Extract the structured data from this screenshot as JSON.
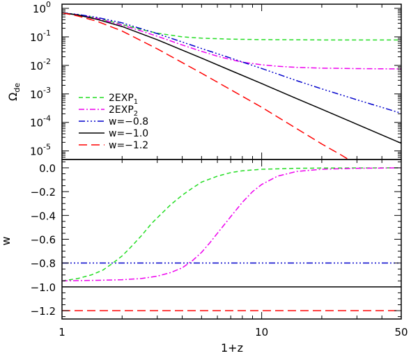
{
  "chart_data": [
    {
      "type": "line",
      "panel": "top",
      "ylabel_main": "Ω",
      "ylabel_sub": "de",
      "xscale": "log",
      "yscale": "log",
      "xlim": [
        1,
        50
      ],
      "ylim": [
        5e-06,
        1.4
      ],
      "yticks": [
        {
          "value": 1,
          "mantissa": "10",
          "exp": "0"
        },
        {
          "value": 0.1,
          "mantissa": "10",
          "exp": "-1"
        },
        {
          "value": 0.01,
          "mantissa": "10",
          "exp": "-2"
        },
        {
          "value": 0.001,
          "mantissa": "10",
          "exp": "-3"
        },
        {
          "value": 0.0001,
          "mantissa": "10",
          "exp": "-4"
        },
        {
          "value": 1e-05,
          "mantissa": "10",
          "exp": "-5"
        }
      ],
      "legend_position": "lower-left",
      "legend": [
        {
          "text": "2EXP",
          "sub": "1",
          "color": "#22dd22",
          "dash": "6,4"
        },
        {
          "text": "2EXP",
          "sub": "2",
          "color": "#ee00ee",
          "dash": "8,3,2,3"
        },
        {
          "text": "w=−0.8",
          "sub": "",
          "color": "#0000cc",
          "dash": "9,3,2,3,2,3,2,3"
        },
        {
          "text": "w=−1.0",
          "sub": "",
          "color": "#000000",
          "dash": ""
        },
        {
          "text": "w=−1.2",
          "sub": "",
          "color": "#ff0000",
          "dash": "12,6"
        }
      ],
      "series": [
        {
          "name": "2EXP1",
          "color": "#22dd22",
          "dash": "6,4",
          "x": [
            1,
            1.2,
            1.5,
            1.8,
            2,
            2.5,
            3,
            4,
            5,
            7,
            10,
            15,
            20,
            30,
            50
          ],
          "y": [
            0.7,
            0.6,
            0.45,
            0.33,
            0.27,
            0.18,
            0.135,
            0.1,
            0.09,
            0.083,
            0.08,
            0.079,
            0.078,
            0.078,
            0.078
          ]
        },
        {
          "name": "2EXP2",
          "color": "#ee00ee",
          "dash": "8,3,2,3",
          "x": [
            1,
            1.2,
            1.5,
            2,
            2.5,
            3,
            4,
            5,
            6,
            7,
            8,
            10,
            12,
            15,
            20,
            30,
            50
          ],
          "y": [
            0.7,
            0.6,
            0.44,
            0.26,
            0.16,
            0.105,
            0.052,
            0.031,
            0.021,
            0.016,
            0.013,
            0.0105,
            0.0093,
            0.0085,
            0.008,
            0.0077,
            0.0075
          ]
        },
        {
          "name": "w=-0.8",
          "color": "#0000cc",
          "dash": "9,3,2,3,2,3,2,3",
          "x": [
            1,
            1.2,
            1.5,
            2,
            3,
            5,
            7,
            10,
            15,
            20,
            30,
            50
          ],
          "y": [
            0.7,
            0.61,
            0.48,
            0.31,
            0.13,
            0.039,
            0.018,
            0.0078,
            0.0029,
            0.0015,
            0.00062,
            0.00021
          ]
        },
        {
          "name": "w=-1.0",
          "color": "#000000",
          "dash": "",
          "x": [
            1,
            1.2,
            1.5,
            2,
            3,
            5,
            7,
            10,
            15,
            20,
            30,
            50
          ],
          "y": [
            0.7,
            0.58,
            0.41,
            0.23,
            0.079,
            0.018,
            0.0066,
            0.0023,
            0.00068,
            0.00029,
            8.6e-05,
            1.86e-05
          ]
        },
        {
          "name": "w=-1.2",
          "color": "#ff0000",
          "dash": "12,6",
          "x": [
            1,
            1.2,
            1.5,
            2,
            3,
            5,
            7,
            10,
            15,
            20,
            25,
            30
          ],
          "y": [
            0.7,
            0.54,
            0.35,
            0.16,
            0.038,
            0.0053,
            0.0014,
            0.00034,
            6e-05,
            1.75e-05,
            7.2e-06,
            3.3e-06
          ]
        }
      ]
    },
    {
      "type": "line",
      "panel": "bottom",
      "xlabel": "1+z",
      "ylabel": "w",
      "xscale": "log",
      "xlim": [
        1,
        50
      ],
      "ylim": [
        -1.27,
        0.07
      ],
      "xticks": [
        {
          "value": 1,
          "label": "1"
        },
        {
          "value": 10,
          "label": "10"
        },
        {
          "value": 50,
          "label": "50"
        }
      ],
      "yticks": [
        {
          "value": 0.0,
          "label": "0.0"
        },
        {
          "value": -0.2,
          "label": "−0.2"
        },
        {
          "value": -0.4,
          "label": "−0.4"
        },
        {
          "value": -0.6,
          "label": "−0.6"
        },
        {
          "value": -0.8,
          "label": "−0.8"
        },
        {
          "value": -1.0,
          "label": "−1.0"
        },
        {
          "value": -1.2,
          "label": "−1.2"
        }
      ],
      "series": [
        {
          "name": "2EXP1",
          "color": "#22dd22",
          "dash": "6,4",
          "x": [
            1,
            1.2,
            1.4,
            1.6,
            1.8,
            2,
            2.2,
            2.5,
            2.8,
            3,
            3.5,
            4,
            4.5,
            5,
            6,
            7,
            8,
            10,
            15,
            20,
            30,
            50
          ],
          "y": [
            -0.95,
            -0.93,
            -0.9,
            -0.86,
            -0.8,
            -0.74,
            -0.67,
            -0.57,
            -0.47,
            -0.42,
            -0.31,
            -0.23,
            -0.17,
            -0.12,
            -0.07,
            -0.04,
            -0.025,
            -0.012,
            -0.004,
            -0.002,
            -0.001,
            0.0
          ]
        },
        {
          "name": "2EXP2",
          "color": "#ee00ee",
          "dash": "8,3,2,3",
          "x": [
            1,
            1.5,
            2,
            2.5,
            3,
            3.5,
            4,
            4.5,
            5,
            5.5,
            6,
            7,
            8,
            9,
            10,
            12,
            15,
            20,
            30,
            50
          ],
          "y": [
            -0.95,
            -0.945,
            -0.94,
            -0.93,
            -0.91,
            -0.88,
            -0.84,
            -0.78,
            -0.71,
            -0.63,
            -0.55,
            -0.41,
            -0.29,
            -0.2,
            -0.14,
            -0.07,
            -0.03,
            -0.012,
            -0.004,
            0.0
          ]
        },
        {
          "name": "w=-0.8",
          "color": "#0000cc",
          "dash": "9,3,2,3,2,3,2,3",
          "x": [
            1,
            50
          ],
          "y": [
            -0.8,
            -0.8
          ]
        },
        {
          "name": "w=-1.0",
          "color": "#000000",
          "dash": "",
          "x": [
            1,
            50
          ],
          "y": [
            -1.0,
            -1.0
          ]
        },
        {
          "name": "w=-1.2",
          "color": "#ff0000",
          "dash": "12,6",
          "x": [
            1,
            50
          ],
          "y": [
            -1.2,
            -1.2
          ]
        }
      ]
    }
  ]
}
